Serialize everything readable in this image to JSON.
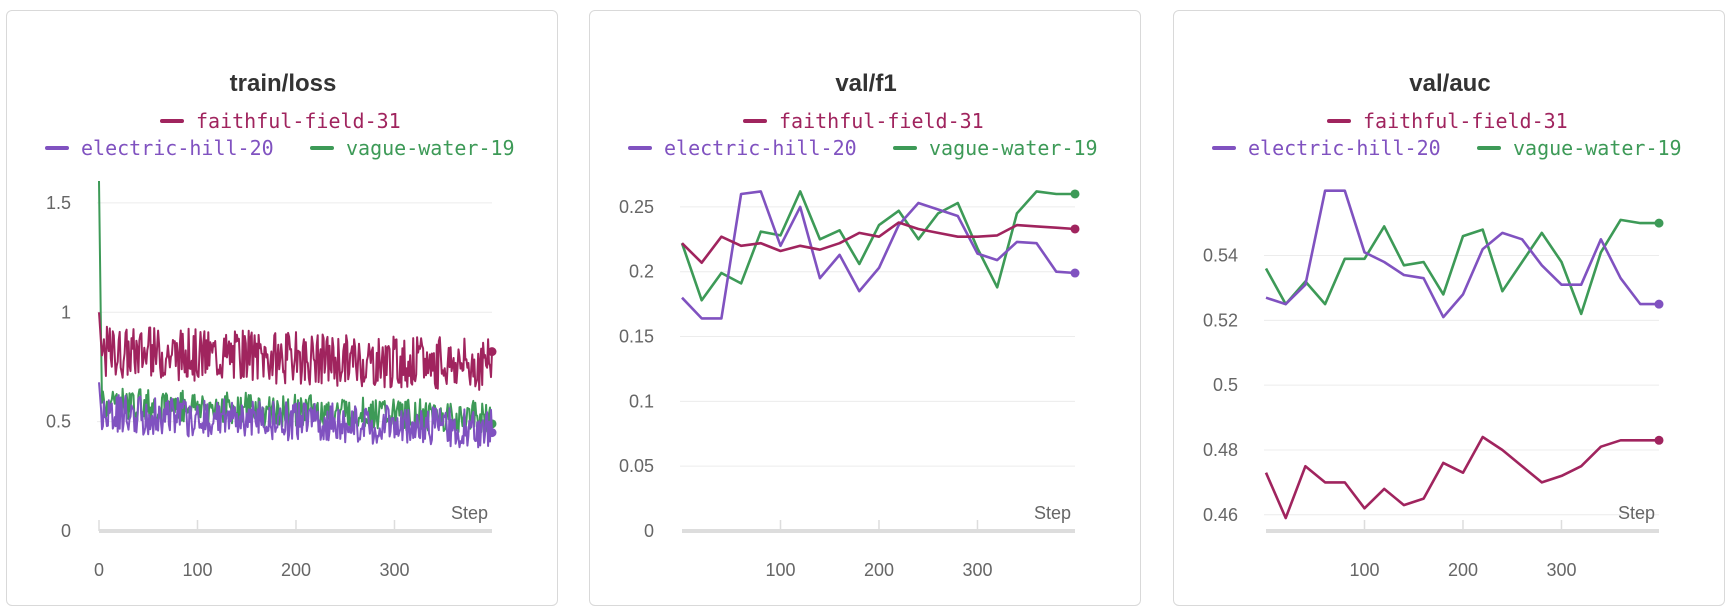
{
  "colors": {
    "faithful-field-31": "#a0245e",
    "electric-hill-20": "#8052c0",
    "vague-water-19": "#3d9a57",
    "grid": "#ececec",
    "axis": "#dddddd"
  },
  "chart_data": [
    {
      "type": "line",
      "title": "train/loss",
      "xlabel": "Step",
      "ylabel": "",
      "xlim": [
        0,
        399
      ],
      "ylim": [
        0,
        1.6
      ],
      "xticks": [
        "0",
        "100",
        "200",
        "300"
      ],
      "yticks": [
        "0",
        "0.5",
        "1",
        "1.5"
      ],
      "legend": [
        "faithful-field-31",
        "electric-hill-20",
        "vague-water-19"
      ],
      "series": [
        {
          "name": "faithful-field-31",
          "generator": "noisy",
          "n": 400,
          "start": 1.0,
          "mean": 0.79,
          "slope": -0.06,
          "noise": 0.08,
          "seed": 31,
          "last": 0.82
        },
        {
          "name": "electric-hill-20",
          "generator": "noisy",
          "n": 400,
          "start": 0.68,
          "mean": 0.5,
          "slope": -0.07,
          "noise": 0.06,
          "seed": 20,
          "last": 0.45
        },
        {
          "name": "vague-water-19",
          "generator": "noisy",
          "n": 400,
          "start": 1.6,
          "mean": 0.55,
          "slope": -0.06,
          "noise": 0.05,
          "seed": 19,
          "last": 0.49
        }
      ]
    },
    {
      "type": "line",
      "title": "val/f1",
      "xlabel": "Step",
      "ylabel": "",
      "xlim": [
        0,
        399
      ],
      "ylim": [
        0,
        0.27
      ],
      "xticks": [
        "100",
        "200",
        "300"
      ],
      "yticks": [
        "0",
        "0.05",
        "0.1",
        "0.15",
        "0.2",
        "0.25"
      ],
      "legend": [
        "faithful-field-31",
        "electric-hill-20",
        "vague-water-19"
      ],
      "series": [
        {
          "name": "faithful-field-31",
          "x": [
            0,
            20,
            40,
            60,
            80,
            100,
            120,
            140,
            160,
            180,
            200,
            220,
            240,
            260,
            280,
            300,
            320,
            340,
            360,
            380,
            399
          ],
          "y": [
            0.222,
            0.207,
            0.227,
            0.22,
            0.222,
            0.216,
            0.22,
            0.217,
            0.222,
            0.23,
            0.227,
            0.238,
            0.233,
            0.23,
            0.227,
            0.227,
            0.228,
            0.236,
            0.235,
            0.234,
            0.233
          ]
        },
        {
          "name": "electric-hill-20",
          "x": [
            0,
            20,
            40,
            60,
            80,
            100,
            120,
            140,
            160,
            180,
            200,
            220,
            240,
            260,
            280,
            300,
            320,
            340,
            360,
            380,
            399
          ],
          "y": [
            0.18,
            0.164,
            0.164,
            0.26,
            0.262,
            0.22,
            0.25,
            0.195,
            0.213,
            0.185,
            0.203,
            0.236,
            0.253,
            0.248,
            0.243,
            0.214,
            0.209,
            0.223,
            0.222,
            0.2,
            0.199
          ]
        },
        {
          "name": "vague-water-19",
          "x": [
            0,
            20,
            40,
            60,
            80,
            100,
            120,
            140,
            160,
            180,
            200,
            220,
            240,
            260,
            280,
            300,
            320,
            340,
            360,
            380,
            399
          ],
          "y": [
            0.222,
            0.178,
            0.199,
            0.191,
            0.231,
            0.228,
            0.262,
            0.225,
            0.232,
            0.206,
            0.236,
            0.247,
            0.225,
            0.245,
            0.253,
            0.218,
            0.188,
            0.245,
            0.262,
            0.26,
            0.26
          ]
        }
      ]
    },
    {
      "type": "line",
      "title": "val/auc",
      "xlabel": "Step",
      "ylabel": "",
      "xlim": [
        0,
        399
      ],
      "ylim": [
        0.455,
        0.563
      ],
      "xticks": [
        "100",
        "200",
        "300"
      ],
      "yticks": [
        "0.46",
        "0.48",
        "0.5",
        "0.52",
        "0.54"
      ],
      "legend": [
        "faithful-field-31",
        "electric-hill-20",
        "vague-water-19"
      ],
      "series": [
        {
          "name": "faithful-field-31",
          "x": [
            0,
            20,
            40,
            60,
            80,
            100,
            120,
            140,
            160,
            180,
            200,
            220,
            240,
            260,
            280,
            300,
            320,
            340,
            360,
            380,
            399
          ],
          "y": [
            0.473,
            0.459,
            0.475,
            0.47,
            0.47,
            0.462,
            0.468,
            0.463,
            0.465,
            0.476,
            0.473,
            0.484,
            0.48,
            0.475,
            0.47,
            0.472,
            0.475,
            0.481,
            0.483,
            0.483,
            0.483
          ]
        },
        {
          "name": "electric-hill-20",
          "x": [
            0,
            20,
            40,
            60,
            80,
            100,
            120,
            140,
            160,
            180,
            200,
            220,
            240,
            260,
            280,
            300,
            320,
            340,
            360,
            380,
            399
          ],
          "y": [
            0.527,
            0.525,
            0.531,
            0.56,
            0.56,
            0.541,
            0.538,
            0.534,
            0.533,
            0.521,
            0.528,
            0.542,
            0.547,
            0.545,
            0.537,
            0.531,
            0.531,
            0.545,
            0.533,
            0.525,
            0.525
          ]
        },
        {
          "name": "vague-water-19",
          "x": [
            0,
            20,
            40,
            60,
            80,
            100,
            120,
            140,
            160,
            180,
            200,
            220,
            240,
            260,
            280,
            300,
            320,
            340,
            360,
            380,
            399
          ],
          "y": [
            0.536,
            0.525,
            0.532,
            0.525,
            0.539,
            0.539,
            0.549,
            0.537,
            0.538,
            0.528,
            0.546,
            0.548,
            0.529,
            0.538,
            0.547,
            0.538,
            0.522,
            0.541,
            0.551,
            0.55,
            0.55
          ]
        }
      ]
    }
  ]
}
